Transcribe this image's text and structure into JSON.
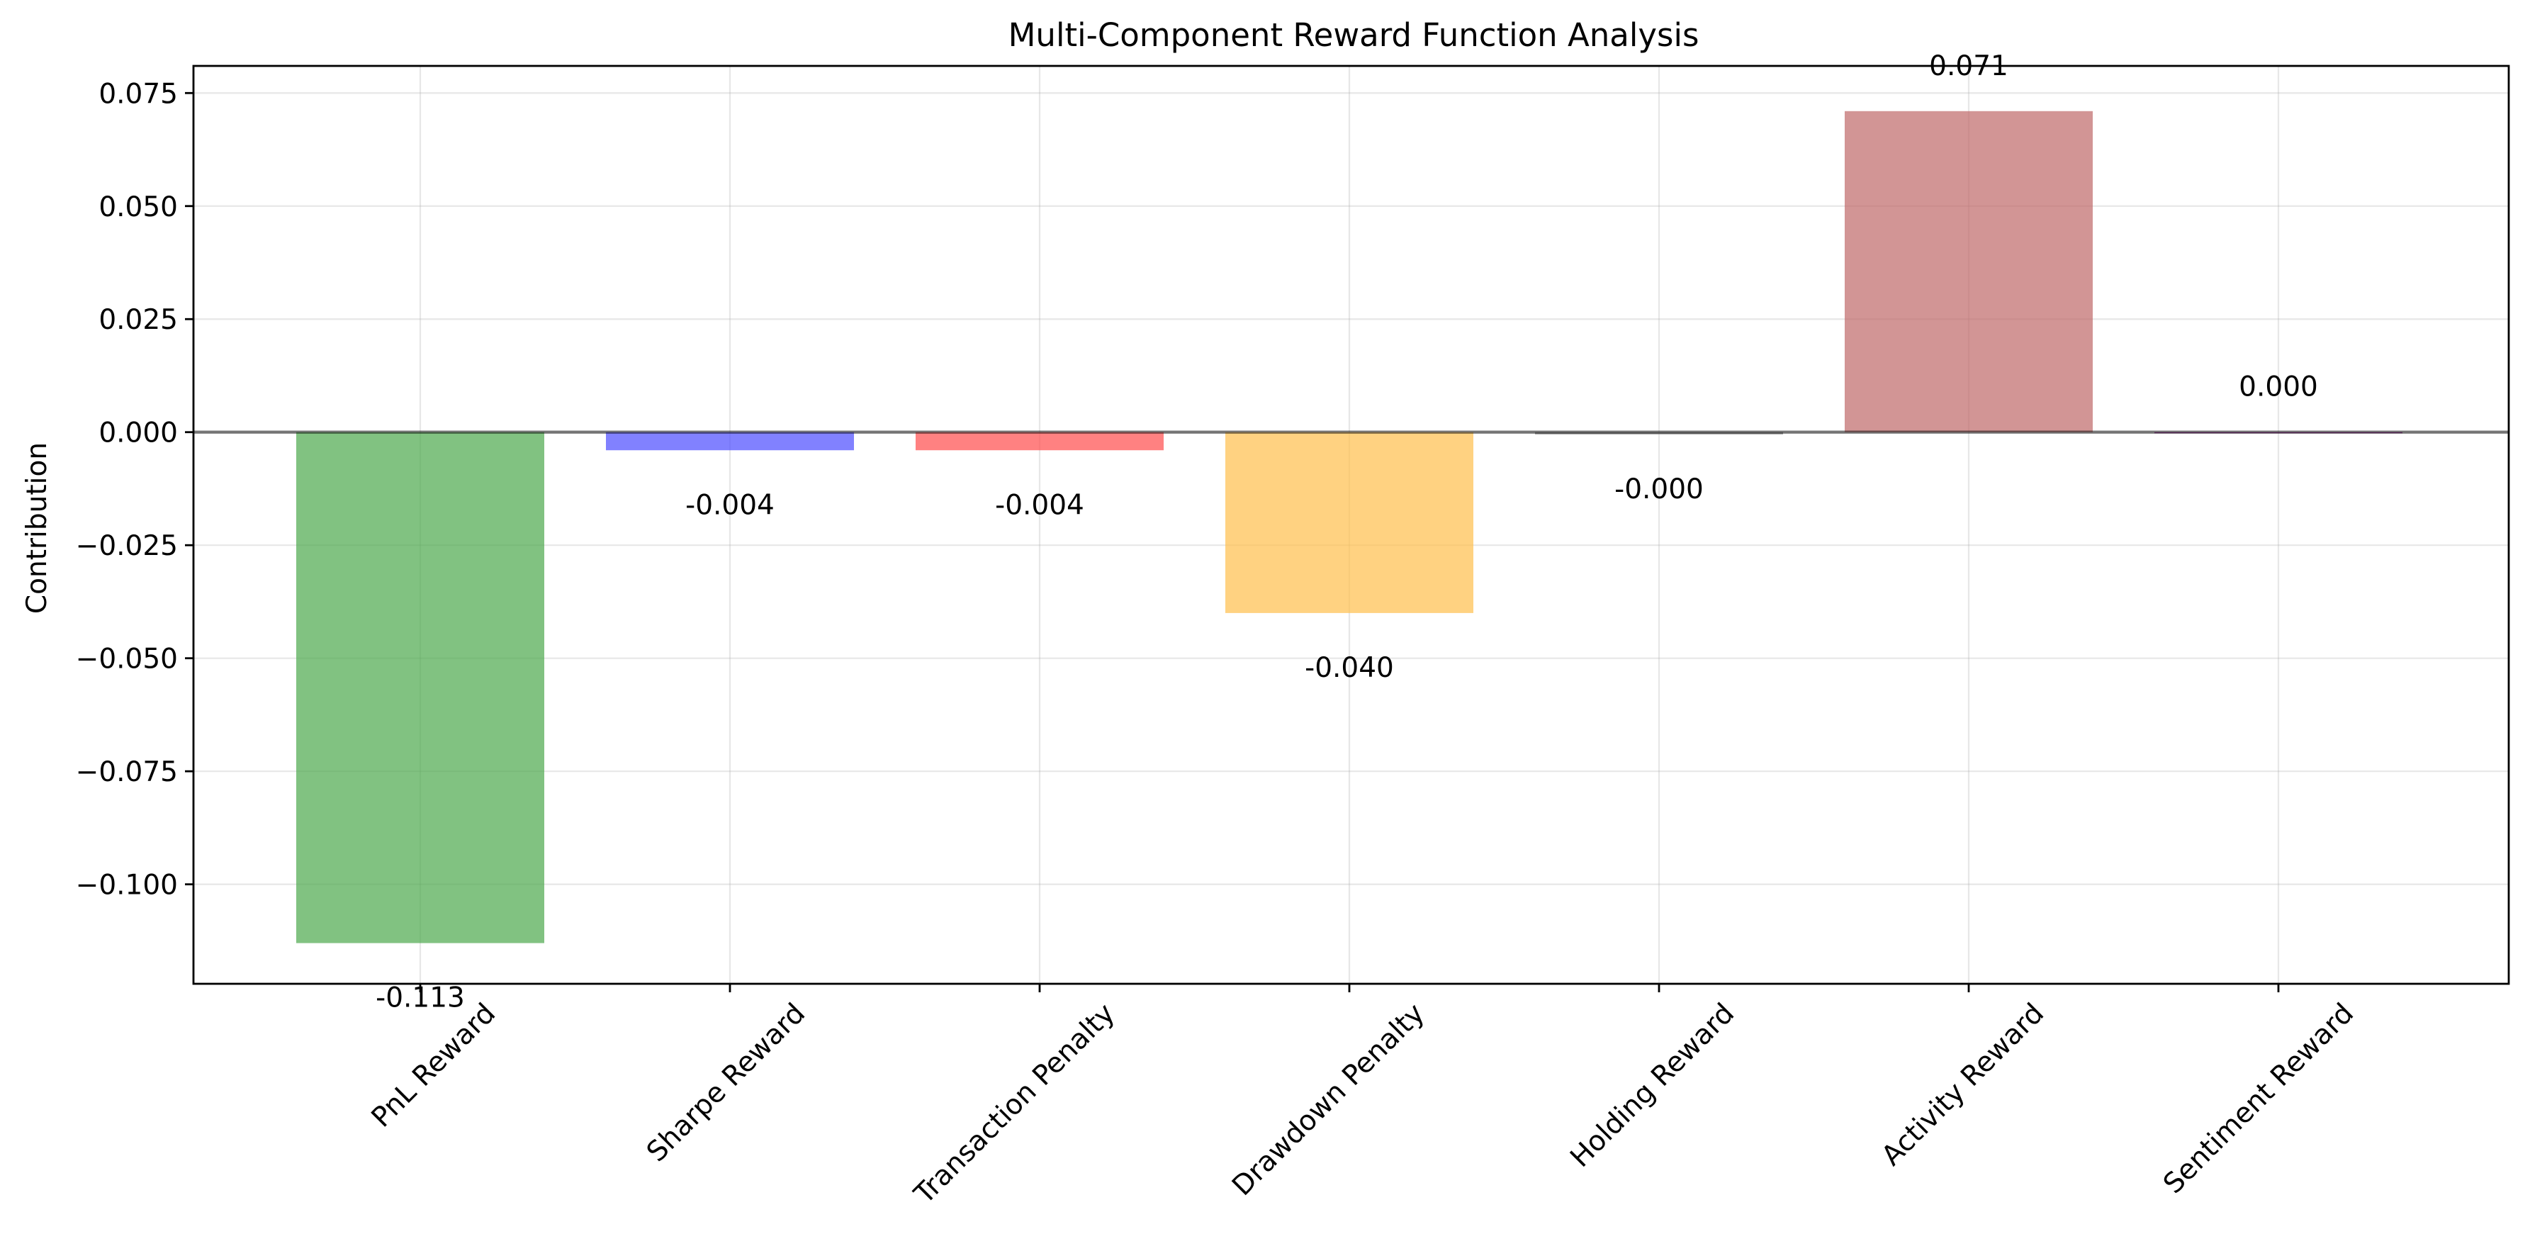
{
  "chart_data": {
    "type": "bar",
    "title": "Multi-Component Reward Function Analysis",
    "xlabel": "",
    "ylabel": "Contribution",
    "categories": [
      "PnL Reward",
      "Sharpe Reward",
      "Transaction Penalty",
      "Drawdown Penalty",
      "Holding Reward",
      "Activity Reward",
      "Sentiment Reward"
    ],
    "values": [
      -0.113,
      -0.004,
      -0.004,
      -0.04,
      -0.0005,
      0.071,
      0.0
    ],
    "value_labels": [
      "-0.113",
      "-0.004",
      "-0.004",
      "-0.040",
      "-0.000",
      "0.071",
      "0.000"
    ],
    "colors": [
      "#4ca84c",
      "#4c4cff",
      "#ff4c4c",
      "#ffbf4c",
      "#808080",
      "#bf6868",
      "#800080"
    ],
    "ylim": [
      -0.122,
      0.081
    ],
    "yticks": [
      0.075,
      0.05,
      0.025,
      0.0,
      -0.025,
      -0.05,
      -0.075,
      -0.1
    ],
    "ytick_labels": [
      "0.075",
      "0.050",
      "0.025",
      "0.000",
      "−0.025",
      "−0.050",
      "−0.075",
      "−0.100"
    ],
    "grid": true,
    "zero_line": true
  }
}
